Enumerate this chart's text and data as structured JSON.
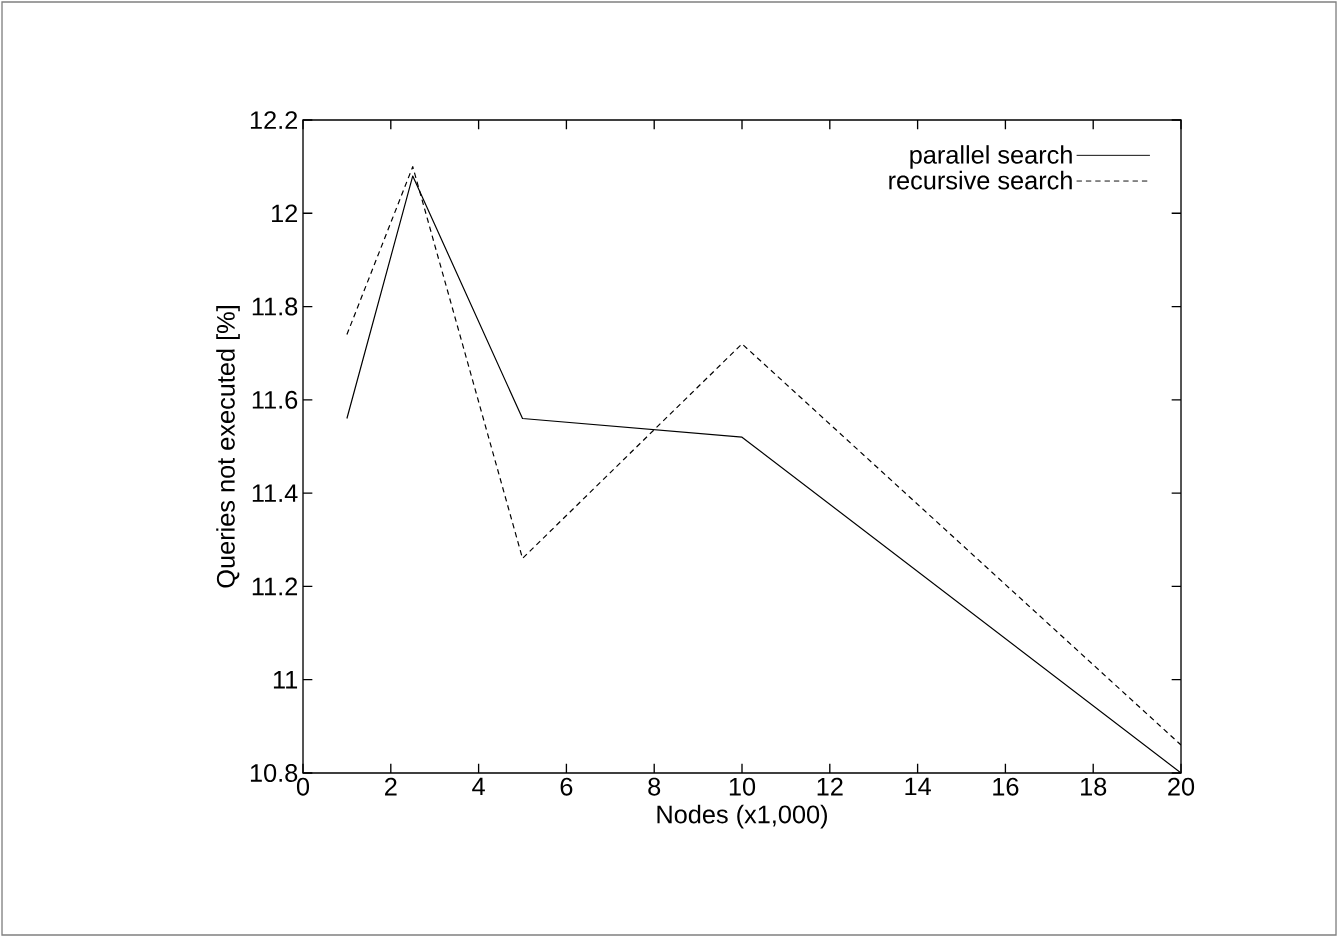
{
  "chart_data": {
    "type": "line",
    "xlabel": "Nodes (x1,000)",
    "ylabel": "Queries not executed [%]",
    "x": [
      1,
      2.5,
      5,
      10,
      20
    ],
    "series": [
      {
        "name": "parallel search",
        "color": "#000000",
        "line_style": "solid",
        "values": [
          11.56,
          12.08,
          11.56,
          11.52,
          10.8
        ]
      },
      {
        "name": "recursive search",
        "color": "#000000",
        "line_style": "dashed",
        "values": [
          11.74,
          12.1,
          11.26,
          11.72,
          10.86
        ]
      }
    ],
    "xlim": [
      0,
      20
    ],
    "ylim": [
      10.8,
      12.2
    ],
    "xticks": [
      0,
      2,
      4,
      6,
      8,
      10,
      12,
      14,
      16,
      18,
      20
    ],
    "yticks": [
      10.8,
      11,
      11.2,
      11.4,
      11.6,
      11.8,
      12,
      12.2
    ],
    "grid": false,
    "legend": "top right",
    "marker": "none"
  }
}
